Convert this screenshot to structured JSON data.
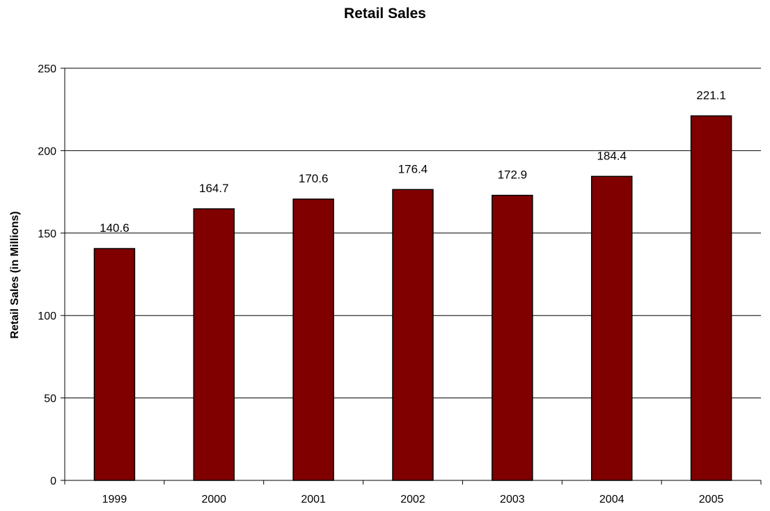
{
  "chart_data": {
    "type": "bar",
    "title": "Retail Sales",
    "xlabel": "",
    "ylabel": "Retail Sales (in Millions)",
    "categories": [
      "1999",
      "2000",
      "2001",
      "2002",
      "2003",
      "2004",
      "2005"
    ],
    "values": [
      140.6,
      164.7,
      170.6,
      176.4,
      172.9,
      184.4,
      221.1
    ],
    "data_labels": [
      "140.6",
      "164.7",
      "170.6",
      "176.4",
      "172.9",
      "184.4",
      "221.1"
    ],
    "ylim": [
      0,
      250
    ],
    "yticks": [
      0,
      50,
      100,
      150,
      200,
      250
    ],
    "ytick_labels": [
      "0",
      "50",
      "100",
      "150",
      "200",
      "250"
    ],
    "grid": "horizontal",
    "legend": "none",
    "bar_color": "#800000",
    "bar_stroke": "#000000",
    "grid_color": "#000000"
  }
}
